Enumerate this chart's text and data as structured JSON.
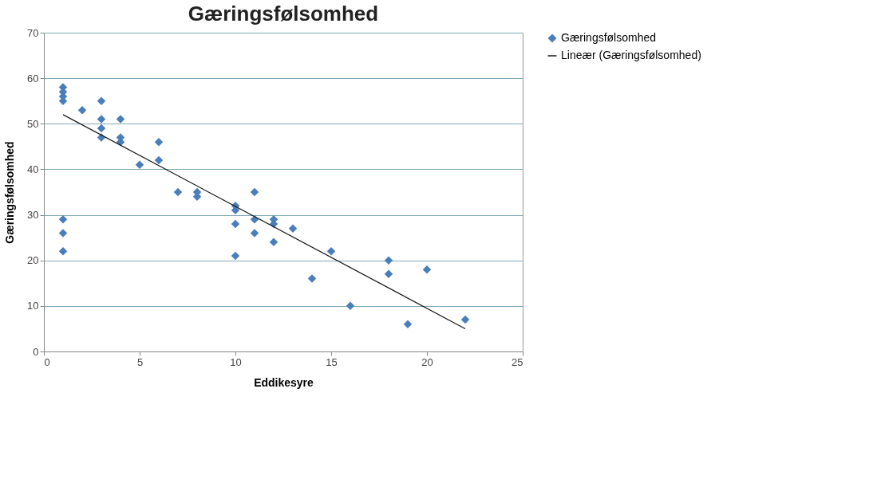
{
  "chart_data": {
    "type": "scatter",
    "title": "Gæringsfølsomhed",
    "xlabel": "Eddikesyre",
    "ylabel": "Gæringsfølsomhed",
    "xlim": [
      0,
      25
    ],
    "xticks": [
      0,
      5,
      10,
      15,
      20,
      25
    ],
    "ylim": [
      0,
      70
    ],
    "yticks": [
      0,
      10,
      20,
      30,
      40,
      50,
      60,
      70
    ],
    "grid": "y",
    "legend": "right",
    "marker": "diamond",
    "series": [
      {
        "name": "Gæringsfølsomhed",
        "color": "#4a7ebb",
        "x": [
          1,
          1,
          1,
          1,
          1,
          1,
          1,
          2,
          3,
          3,
          3,
          3,
          4,
          4,
          4,
          5,
          6,
          6,
          7,
          8,
          8,
          10,
          10,
          10,
          10,
          11,
          11,
          11,
          12,
          12,
          12,
          13,
          14,
          15,
          16,
          18,
          18,
          19,
          20,
          22
        ],
        "values": [
          58,
          57,
          56,
          55,
          29,
          26,
          22,
          53,
          55,
          51,
          49,
          47,
          51,
          47,
          46,
          41,
          46,
          42,
          35,
          35,
          34,
          32,
          31,
          28,
          21,
          35,
          29,
          26,
          29,
          28,
          24,
          27,
          16,
          22,
          10,
          20,
          17,
          6,
          18,
          7
        ]
      },
      {
        "name": "Lineær (Gæringsfølsomhed)",
        "color": "#1a1a1a",
        "type": "line",
        "marker": "none",
        "line_style": "solid",
        "x": [
          1,
          22
        ],
        "values": [
          52,
          5
        ]
      }
    ]
  }
}
